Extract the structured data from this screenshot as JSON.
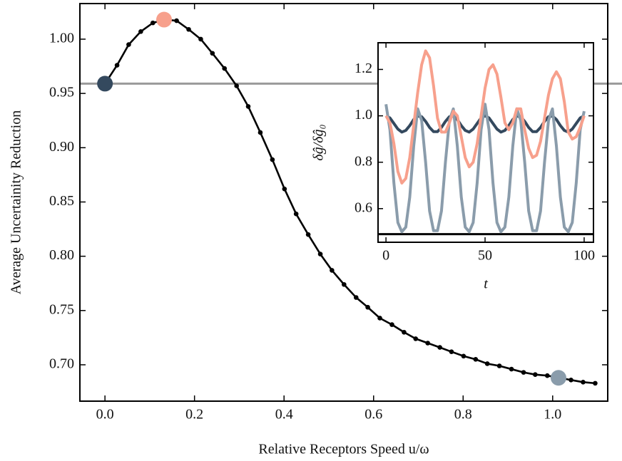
{
  "chart_data": [
    {
      "type": "line",
      "xlabel": "Relative Receptors Speed u/ω",
      "ylabel": "Average Uncertainity Reduction",
      "x": [
        0,
        0.027,
        0.053,
        0.08,
        0.107,
        0.134,
        0.16,
        0.187,
        0.214,
        0.24,
        0.267,
        0.294,
        0.32,
        0.347,
        0.374,
        0.401,
        0.427,
        0.454,
        0.481,
        0.507,
        0.534,
        0.561,
        0.587,
        0.614,
        0.641,
        0.668,
        0.694,
        0.721,
        0.748,
        0.774,
        0.801,
        0.828,
        0.854,
        0.881,
        0.908,
        0.935,
        0.961,
        0.988,
        1.015,
        1.041,
        1.068,
        1.095
      ],
      "series": [
        {
          "color": "#000000",
          "values": [
            0.959,
            0.976,
            0.995,
            1.007,
            1.015,
            1.018,
            1.017,
            1.009,
            1.0,
            0.987,
            0.973,
            0.957,
            0.938,
            0.914,
            0.889,
            0.862,
            0.839,
            0.82,
            0.802,
            0.787,
            0.774,
            0.762,
            0.753,
            0.743,
            0.737,
            0.73,
            0.724,
            0.72,
            0.716,
            0.712,
            0.708,
            0.705,
            0.701,
            0.699,
            0.696,
            0.693,
            0.691,
            0.69,
            0.688,
            0.686,
            0.684,
            0.683
          ]
        }
      ],
      "highlights": {
        "x": [
          0,
          0.132,
          1.013
        ],
        "values": [
          0.959,
          1.018,
          0.688
        ],
        "colors": [
          "#34495e",
          "#f7a08c",
          "#8a9cab"
        ]
      },
      "reference_line": {
        "value": 0.959,
        "color": "#9a9a9a"
      },
      "xlim": [
        -0.056,
        1.123
      ],
      "ylim": [
        0.6665,
        1.0328
      ],
      "xticks": [
        {
          "value": 0,
          "label": "0.0"
        },
        0.2,
        0.4,
        0.6,
        0.8,
        {
          "value": 1,
          "label": "1.0"
        }
      ],
      "yticks": [
        {
          "value": 0.7,
          "label": "0.70"
        },
        {
          "value": 0.75,
          "label": "0.75"
        },
        {
          "value": 0.8,
          "label": "0.80"
        },
        {
          "value": 0.85,
          "label": "0.85"
        },
        {
          "value": 0.9,
          "label": "0.90"
        },
        {
          "value": 0.95,
          "label": "0.95"
        },
        {
          "value": 1,
          "label": "1.00"
        }
      ]
    },
    {
      "type": "line",
      "xlabel": "t",
      "ylabel": "δĝ/δĝ₀",
      "x": [
        0,
        2,
        4,
        6,
        8,
        10,
        12,
        14,
        16,
        18,
        20,
        22,
        24,
        26,
        28,
        30,
        32,
        34,
        36,
        38,
        40,
        42,
        44,
        46,
        48,
        50,
        52,
        54,
        56,
        58,
        60,
        62,
        64,
        66,
        68,
        70,
        72,
        74,
        76,
        78,
        80,
        82,
        84,
        86,
        88,
        90,
        92,
        94,
        96,
        98,
        100
      ],
      "series": [
        {
          "color": "#34495e",
          "values": [
            1.0,
            0.991,
            0.967,
            0.943,
            0.93,
            0.937,
            0.958,
            0.984,
            0.999,
            0.996,
            0.976,
            0.95,
            0.932,
            0.932,
            0.95,
            0.976,
            0.996,
            0.999,
            0.984,
            0.958,
            0.937,
            0.93,
            0.943,
            0.967,
            0.991,
            1.0,
            0.991,
            0.967,
            0.943,
            0.93,
            0.937,
            0.958,
            0.984,
            0.999,
            0.996,
            0.976,
            0.95,
            0.932,
            0.932,
            0.95,
            0.976,
            0.996,
            0.999,
            0.984,
            0.958,
            0.937,
            0.93,
            0.943,
            0.967,
            0.991,
            1.0
          ]
        },
        {
          "color": "#8a9cab",
          "values": [
            1.05,
            0.94,
            0.71,
            0.54,
            0.5,
            0.52,
            0.65,
            0.87,
            1.03,
            0.98,
            0.8,
            0.59,
            0.505,
            0.505,
            0.59,
            0.8,
            0.98,
            1.03,
            0.87,
            0.65,
            0.52,
            0.5,
            0.54,
            0.71,
            0.94,
            1.05,
            0.94,
            0.71,
            0.54,
            0.5,
            0.52,
            0.65,
            0.87,
            1.03,
            0.98,
            0.8,
            0.59,
            0.505,
            0.505,
            0.59,
            0.8,
            0.98,
            1.03,
            0.87,
            0.65,
            0.52,
            0.5,
            0.54,
            0.71,
            0.94,
            1.02
          ]
        },
        {
          "color": "#f7a08c",
          "values": [
            1.0,
            0.97,
            0.88,
            0.76,
            0.71,
            0.73,
            0.82,
            0.96,
            1.1,
            1.22,
            1.28,
            1.25,
            1.13,
            0.99,
            0.93,
            0.93,
            0.97,
            1.02,
            1.0,
            0.91,
            0.82,
            0.78,
            0.8,
            0.88,
            1.0,
            1.12,
            1.2,
            1.22,
            1.18,
            1.08,
            0.97,
            0.94,
            0.97,
            1.03,
            1.03,
            0.94,
            0.86,
            0.82,
            0.83,
            0.89,
            0.99,
            1.09,
            1.16,
            1.19,
            1.16,
            1.06,
            0.93,
            0.9,
            0.91,
            0.95,
            1.0
          ]
        }
      ],
      "reference_line": {
        "value": 0.49,
        "color": "#000000"
      },
      "xlim": [
        -4,
        104.7
      ],
      "ylim": [
        0.455,
        1.315
      ],
      "xticks": [
        0,
        50,
        100
      ],
      "yticks": [
        0.6,
        0.8,
        {
          "value": 1,
          "label": "1.0"
        },
        1.2
      ]
    }
  ]
}
